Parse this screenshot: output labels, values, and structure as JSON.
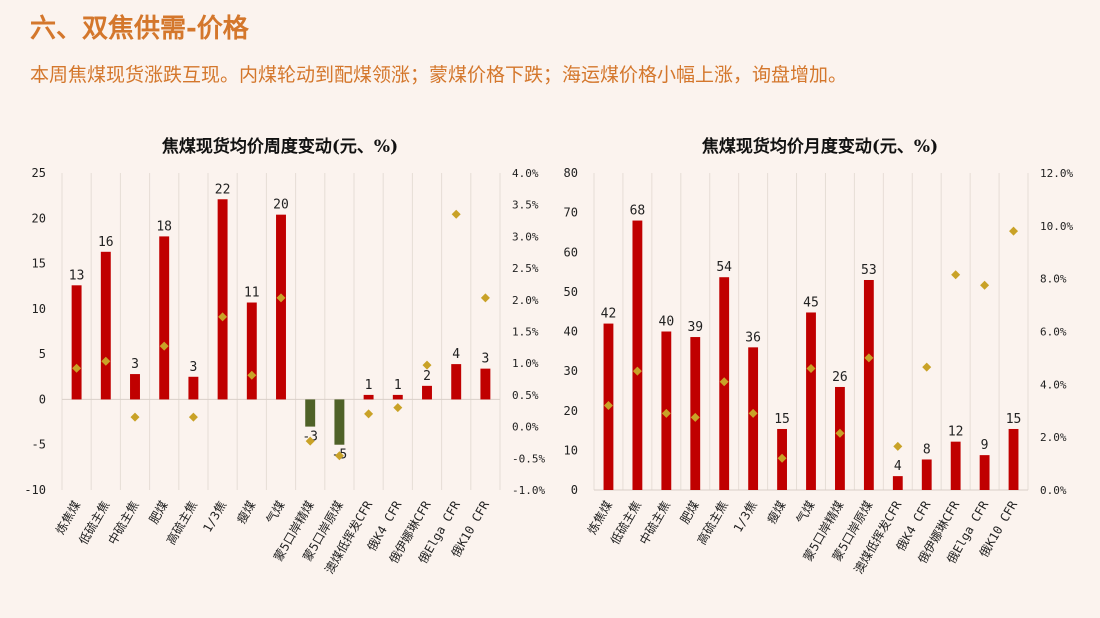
{
  "header": {
    "title": "六、双焦供需-价格",
    "subtitle": "本周焦煤现货涨跌互现。内煤轮动到配煤领涨；蒙煤价格下跌；海运煤价格小幅上涨，询盘增加。"
  },
  "colors": {
    "positive": "#c00000",
    "negative": "#4f6228",
    "marker": "#c9a227",
    "grid": "#e6ddd6"
  },
  "chart_data": [
    {
      "type": "bar",
      "title": "焦煤现货均价周度变动(元、%)",
      "categories": [
        "炼焦煤",
        "低硫主焦",
        "中硫主焦",
        "肥煤",
        "高硫主焦",
        "1/3焦",
        "瘦煤",
        "气煤",
        "蒙5口岸精煤",
        "蒙5口岸原煤",
        "澳煤低挥发CFR",
        "俄K4 CFR",
        "俄伊娜琳CFR",
        "俄Elga CFR",
        "俄K10 CFR"
      ],
      "series": [
        {
          "values": [
            12.6,
            16.3,
            2.8,
            18.0,
            2.5,
            22.1,
            10.7,
            20.4,
            -3.0,
            -5.0,
            0.5,
            0.5,
            1.5,
            3.9,
            3.4
          ]
        },
        {
          "values": [
            0.92,
            1.03,
            0.15,
            1.27,
            0.15,
            1.73,
            0.81,
            2.03,
            -0.23,
            -0.46,
            0.2,
            0.3,
            0.97,
            3.35,
            2.03
          ]
        }
      ],
      "data_labels": [
        "13",
        "16",
        "3",
        "18",
        "3",
        "22",
        "11",
        "20",
        "-3",
        "-5",
        "1",
        "1",
        "2",
        "4",
        "3"
      ],
      "ylim": [
        -10,
        25
      ],
      "y_ticks": [
        "-10",
        "-5",
        "0",
        "5",
        "10",
        "15",
        "20",
        "25"
      ],
      "y2lim": [
        -1.0,
        4.0
      ],
      "y2_ticks": [
        "-1.0%",
        "-0.5%",
        "0.0%",
        "0.5%",
        "1.0%",
        "1.5%",
        "2.0%",
        "2.5%",
        "3.0%",
        "3.5%",
        "4.0%"
      ]
    },
    {
      "type": "bar",
      "title": "焦煤现货均价月度变动(元、%)",
      "categories": [
        "炼焦煤",
        "低硫主焦",
        "中硫主焦",
        "肥煤",
        "高硫主焦",
        "1/3焦",
        "瘦煤",
        "气煤",
        "蒙5口岸精煤",
        "蒙5口岸原煤",
        "澳煤低挥发CFR",
        "俄K4 CFR",
        "俄伊娜琳CFR",
        "俄Elga CFR",
        "俄K10 CFR"
      ],
      "series": [
        {
          "values": [
            42.0,
            68.0,
            40.0,
            38.6,
            53.7,
            36.0,
            15.4,
            44.8,
            26.0,
            53.0,
            3.5,
            7.7,
            12.2,
            8.8,
            15.4
          ]
        },
        {
          "values": [
            3.2,
            4.5,
            2.9,
            2.75,
            4.1,
            2.9,
            1.2,
            4.6,
            2.15,
            5.0,
            1.65,
            4.65,
            8.15,
            7.75,
            9.8
          ]
        }
      ],
      "data_labels": [
        "42",
        "68",
        "40",
        "39",
        "54",
        "36",
        "15",
        "45",
        "26",
        "53",
        "4",
        "8",
        "12",
        "9",
        "15"
      ],
      "ylim": [
        0,
        80
      ],
      "y_ticks": [
        "0",
        "10",
        "20",
        "30",
        "40",
        "50",
        "60",
        "70",
        "80"
      ],
      "y2lim": [
        0,
        12
      ],
      "y2_ticks": [
        "0.0%",
        "2.0%",
        "4.0%",
        "6.0%",
        "8.0%",
        "10.0%",
        "12.0%"
      ]
    }
  ]
}
